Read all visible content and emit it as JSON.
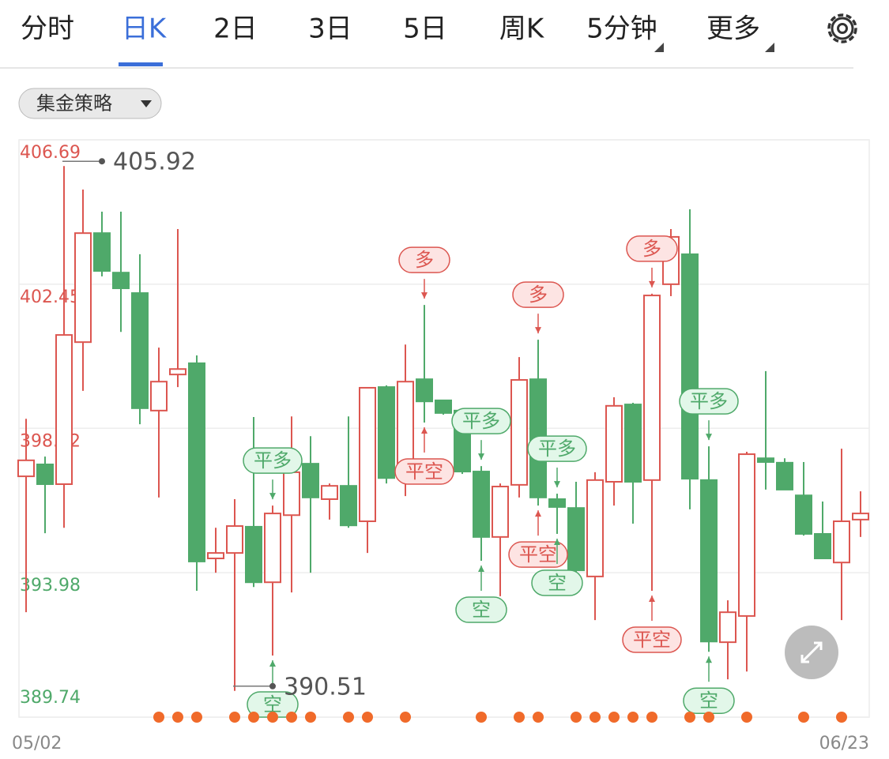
{
  "tabs": [
    "分时",
    "日K",
    "2日",
    "3日",
    "5日",
    "周K",
    "5分钟",
    "更多"
  ],
  "active_tab": 1,
  "strategy_button": "集金策略",
  "chart_data": {
    "type": "candlestick",
    "categories": [
      "05/02",
      null,
      null,
      null,
      null,
      null,
      null,
      null,
      null,
      null,
      null,
      null,
      null,
      null,
      null,
      null,
      null,
      null,
      null,
      null,
      null,
      null,
      null,
      null,
      null,
      null,
      null,
      null,
      null,
      null,
      null,
      null,
      null,
      null,
      null,
      null,
      null,
      null,
      null,
      null,
      null,
      null,
      null,
      null,
      "06/23"
    ],
    "open": [
      396.81,
      397.16,
      396.58,
      400.75,
      403.95,
      402.79,
      402.19,
      398.74,
      399.8,
      400.13,
      394.4,
      394.56,
      395.33,
      393.7,
      395.67,
      397.18,
      396.14,
      396.53,
      395.49,
      399.43,
      396.76,
      399.66,
      399.04,
      398.74,
      396.95,
      395.03,
      396.56,
      399.66,
      396.14,
      395.88,
      393.87,
      396.65,
      398.92,
      396.7,
      402.45,
      403.33,
      396.7,
      391.94,
      392.71,
      397.34,
      397.21,
      396.25,
      395.12,
      394.28,
      395.54
    ],
    "high": [
      398.5,
      397.39,
      405.92,
      405.23,
      404.58,
      404.58,
      403.33,
      400.59,
      404.07,
      400.36,
      395.3,
      396.14,
      398.55,
      395.95,
      398.57,
      397.99,
      396.6,
      398.57,
      399.43,
      399.48,
      400.68,
      401.84,
      399.04,
      398.74,
      397.11,
      396.6,
      400.31,
      400.82,
      396.3,
      396.65,
      396.93,
      399.13,
      398.97,
      402.17,
      404.07,
      404.65,
      397.69,
      393.17,
      397.53,
      399.9,
      397.34,
      397.23,
      396.07,
      397.62,
      396.37
    ],
    "low": [
      392.82,
      395.14,
      395.3,
      399.32,
      402.68,
      401.05,
      398.34,
      396.19,
      399.43,
      393.45,
      393.98,
      390.51,
      393.56,
      391.55,
      393.4,
      393.98,
      395.54,
      395.3,
      394.56,
      396.6,
      396.23,
      398.39,
      398.62,
      396.88,
      394.33,
      393.29,
      396.19,
      395.95,
      395.12,
      393.75,
      392.59,
      395.95,
      395.42,
      393.45,
      402.1,
      395.84,
      391.66,
      390.85,
      391.08,
      396.42,
      396.42,
      395.07,
      394.38,
      392.59,
      395.03
    ],
    "close": [
      397.28,
      396.58,
      400.96,
      403.95,
      402.84,
      402.33,
      398.81,
      399.59,
      399.96,
      394.31,
      394.56,
      395.35,
      393.7,
      395.72,
      396.93,
      396.19,
      396.53,
      395.37,
      399.41,
      396.76,
      399.59,
      399.01,
      398.67,
      396.95,
      395.03,
      396.51,
      399.64,
      396.19,
      395.91,
      394.05,
      396.7,
      398.88,
      396.65,
      402.12,
      403.84,
      396.74,
      391.96,
      392.82,
      397.46,
      397.23,
      396.42,
      395.12,
      394.4,
      395.49,
      395.72
    ],
    "up_color": "#dc5650",
    "down_color": "#4fa96a",
    "ylim": [
      389.74,
      406.69
    ],
    "yticks": [
      406.69,
      402.45,
      398.22,
      393.98,
      389.74
    ],
    "grid": true,
    "signals_above": [
      null,
      null,
      null,
      null,
      null,
      null,
      null,
      null,
      null,
      null,
      null,
      null,
      null,
      "平多",
      null,
      null,
      null,
      null,
      null,
      null,
      null,
      "多",
      null,
      null,
      "平多",
      null,
      null,
      "多",
      "平多",
      null,
      null,
      null,
      null,
      "多",
      null,
      null,
      "平多",
      null,
      null,
      null,
      null,
      null,
      null,
      null,
      null
    ],
    "signals_below": [
      null,
      null,
      null,
      null,
      null,
      null,
      null,
      null,
      null,
      null,
      null,
      null,
      null,
      "空",
      null,
      null,
      null,
      null,
      null,
      null,
      null,
      "平空",
      null,
      null,
      "空",
      null,
      null,
      "平空",
      "空",
      null,
      null,
      null,
      null,
      "平空",
      null,
      null,
      "空",
      null,
      null,
      null,
      null,
      null,
      null,
      null,
      null
    ],
    "signal_colors": {
      "多": "#dc5650",
      "平空": "#dc5650",
      "平多": "#4fa96a",
      "空": "#4fa96a"
    },
    "event_dots": [
      false,
      false,
      false,
      false,
      false,
      false,
      false,
      true,
      true,
      true,
      false,
      true,
      true,
      true,
      true,
      true,
      false,
      true,
      true,
      false,
      true,
      false,
      false,
      false,
      true,
      false,
      true,
      true,
      false,
      true,
      true,
      true,
      true,
      true,
      false,
      true,
      true,
      false,
      true,
      false,
      false,
      true,
      false,
      true,
      false
    ],
    "event_color": "#f06a2a"
  }
}
